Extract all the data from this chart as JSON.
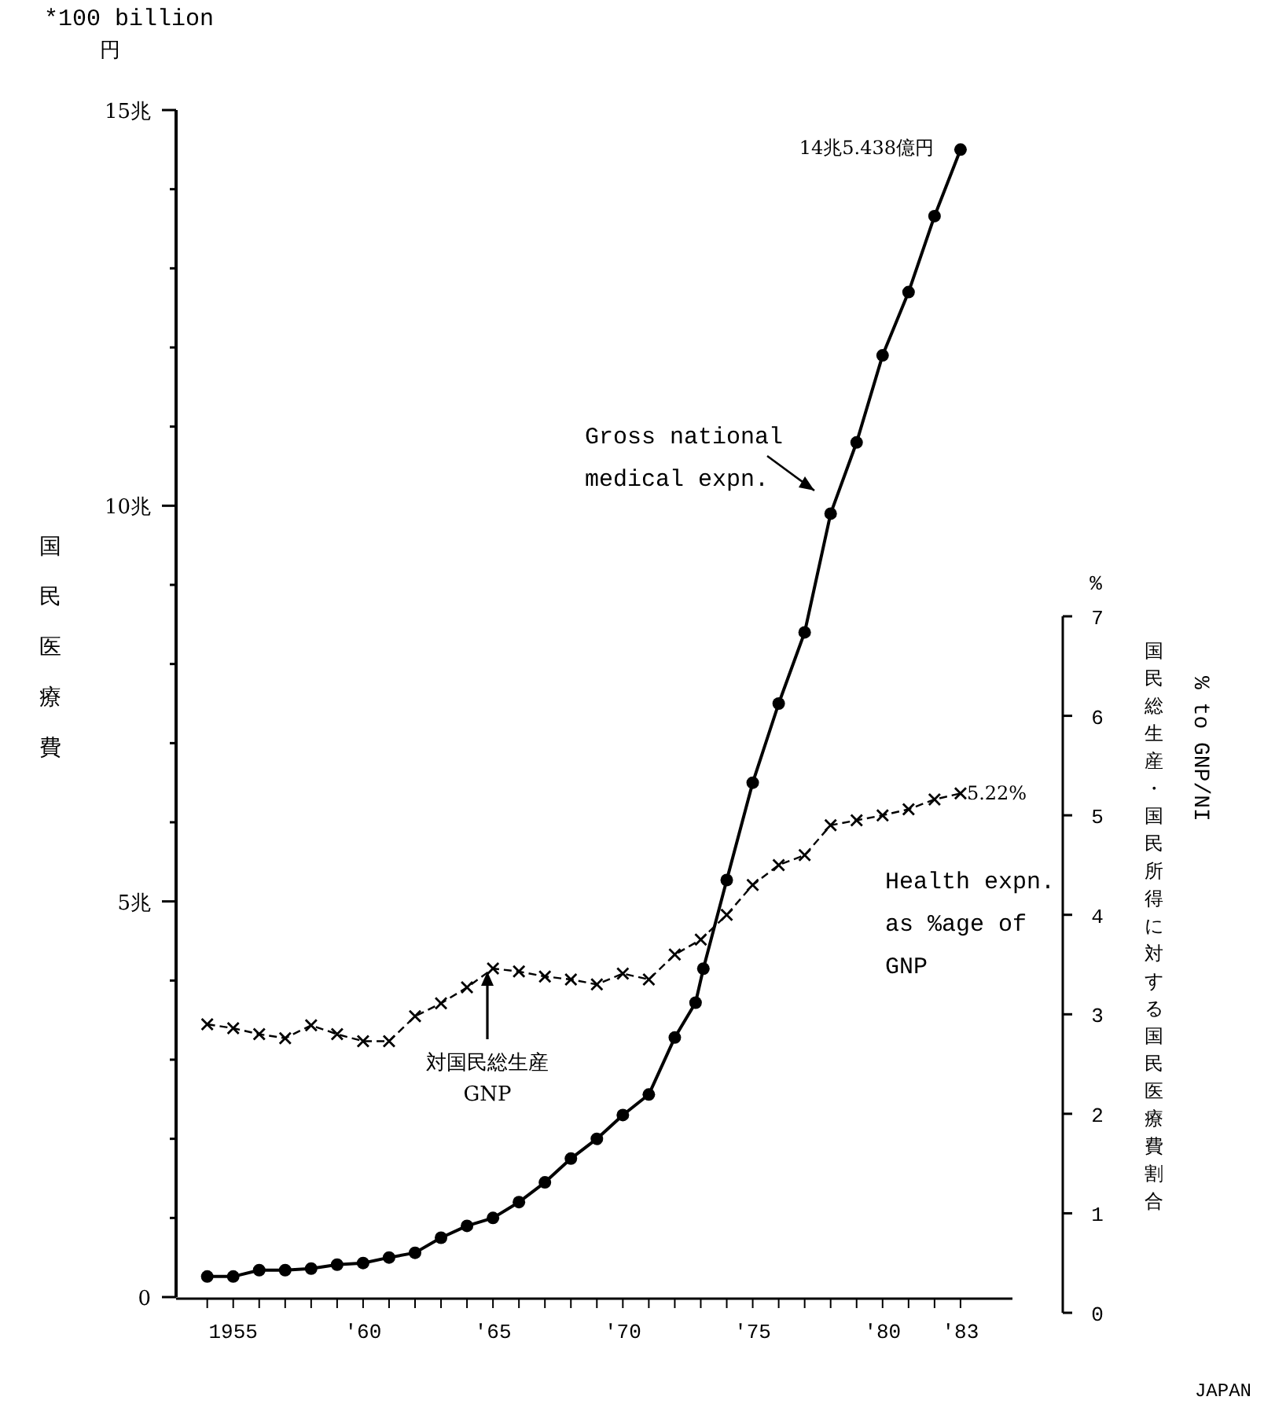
{
  "chart_data": {
    "type": "line",
    "ylabel": "国民医療費",
    "y2label": "国民総生産・国民所得に対する国民医療費割合",
    "xlim": [
      1952.8,
      1985
    ],
    "xticks": [
      {
        "value": 1954,
        "label": null
      },
      {
        "value": 1955,
        "label": "1955"
      },
      {
        "value": 1956,
        "label": null
      },
      {
        "value": 1957,
        "label": null
      },
      {
        "value": 1958,
        "label": null
      },
      {
        "value": 1959,
        "label": null
      },
      {
        "value": 1960,
        "label": "'60"
      },
      {
        "value": 1961,
        "label": null
      },
      {
        "value": 1962,
        "label": null
      },
      {
        "value": 1963,
        "label": null
      },
      {
        "value": 1964,
        "label": null
      },
      {
        "value": 1965,
        "label": "'65"
      },
      {
        "value": 1966,
        "label": null
      },
      {
        "value": 1967,
        "label": null
      },
      {
        "value": 1968,
        "label": null
      },
      {
        "value": 1969,
        "label": null
      },
      {
        "value": 1970,
        "label": "'70"
      },
      {
        "value": 1971,
        "label": null
      },
      {
        "value": 1972,
        "label": null
      },
      {
        "value": 1973,
        "label": null
      },
      {
        "value": 1974,
        "label": null
      },
      {
        "value": 1975,
        "label": "'75"
      },
      {
        "value": 1976,
        "label": null
      },
      {
        "value": 1977,
        "label": null
      },
      {
        "value": 1978,
        "label": null
      },
      {
        "value": 1979,
        "label": null
      },
      {
        "value": 1980,
        "label": "'80"
      },
      {
        "value": 1981,
        "label": null
      },
      {
        "value": 1982,
        "label": null
      },
      {
        "value": 1983,
        "label": "'83"
      }
    ],
    "ylim": [
      0,
      15
    ],
    "yticks": [
      {
        "value": 0,
        "label": "0"
      },
      {
        "value": 1,
        "label": null
      },
      {
        "value": 2,
        "label": null
      },
      {
        "value": 3,
        "label": null
      },
      {
        "value": 4,
        "label": null
      },
      {
        "value": 5,
        "label": "5兆"
      },
      {
        "value": 6,
        "label": null
      },
      {
        "value": 7,
        "label": null
      },
      {
        "value": 8,
        "label": null
      },
      {
        "value": 9,
        "label": null
      },
      {
        "value": 10,
        "label": "10兆"
      },
      {
        "value": 11,
        "label": null
      },
      {
        "value": 12,
        "label": null
      },
      {
        "value": 13,
        "label": null
      },
      {
        "value": 14,
        "label": null
      },
      {
        "value": 15,
        "label": "15兆"
      }
    ],
    "y2lim": [
      0,
      7
    ],
    "y2ticks": [
      0,
      1,
      2,
      3,
      4,
      5,
      6,
      7
    ],
    "series": [
      {
        "name": "Gross national medical expn.",
        "color": "#000000",
        "marker": "circle",
        "line_style": "solid",
        "x": [
          1954,
          1955,
          1956,
          1957,
          1958,
          1959,
          1960,
          1961,
          1962,
          1963,
          1964,
          1965,
          1966,
          1967,
          1968,
          1969,
          1970,
          1971,
          1972,
          1972.8,
          1973.1,
          1974,
          1975,
          1976,
          1977,
          1978,
          1979,
          1980,
          1981,
          1982,
          1983
        ],
        "values": [
          0.26,
          0.26,
          0.34,
          0.34,
          0.36,
          0.41,
          0.43,
          0.5,
          0.56,
          0.75,
          0.9,
          1.0,
          1.2,
          1.45,
          1.75,
          2.0,
          2.3,
          2.56,
          3.28,
          3.72,
          4.15,
          5.27,
          6.5,
          7.5,
          8.4,
          9.9,
          10.8,
          11.9,
          12.7,
          13.66,
          14.5
        ]
      },
      {
        "name": "Health expn. as %age of GNP",
        "color": "#000000",
        "marker": "cross",
        "line_style": "dashed",
        "axis": "y2",
        "x": [
          1954,
          1955,
          1956,
          1957,
          1958,
          1959,
          1960,
          1961,
          1962,
          1963,
          1964,
          1965,
          1966,
          1967,
          1968,
          1969,
          1970,
          1971,
          1972,
          1973,
          1974,
          1975,
          1976,
          1977,
          1978,
          1979,
          1980,
          1981,
          1982,
          1983
        ],
        "values": [
          2.9,
          2.86,
          2.8,
          2.76,
          2.89,
          2.8,
          2.73,
          2.73,
          2.98,
          3.11,
          3.27,
          3.46,
          3.43,
          3.38,
          3.35,
          3.3,
          3.41,
          3.35,
          3.6,
          3.75,
          4.0,
          4.3,
          4.5,
          4.6,
          4.9,
          4.95,
          5.0,
          5.06,
          5.16,
          5.22
        ],
        "value_labels": [
          null,
          null,
          null,
          null,
          null,
          null,
          null,
          null,
          null,
          null,
          null,
          null,
          null,
          null,
          null,
          null,
          null,
          null,
          null,
          null,
          null,
          null,
          null,
          null,
          null,
          null,
          null,
          null,
          null,
          "5.22%"
        ]
      }
    ],
    "annotations": [
      "*100 billion",
      "円",
      "%",
      "% to GNP/NI",
      "対国民総生産 GNP",
      "JAPAN",
      "14兆5.438億円"
    ]
  }
}
